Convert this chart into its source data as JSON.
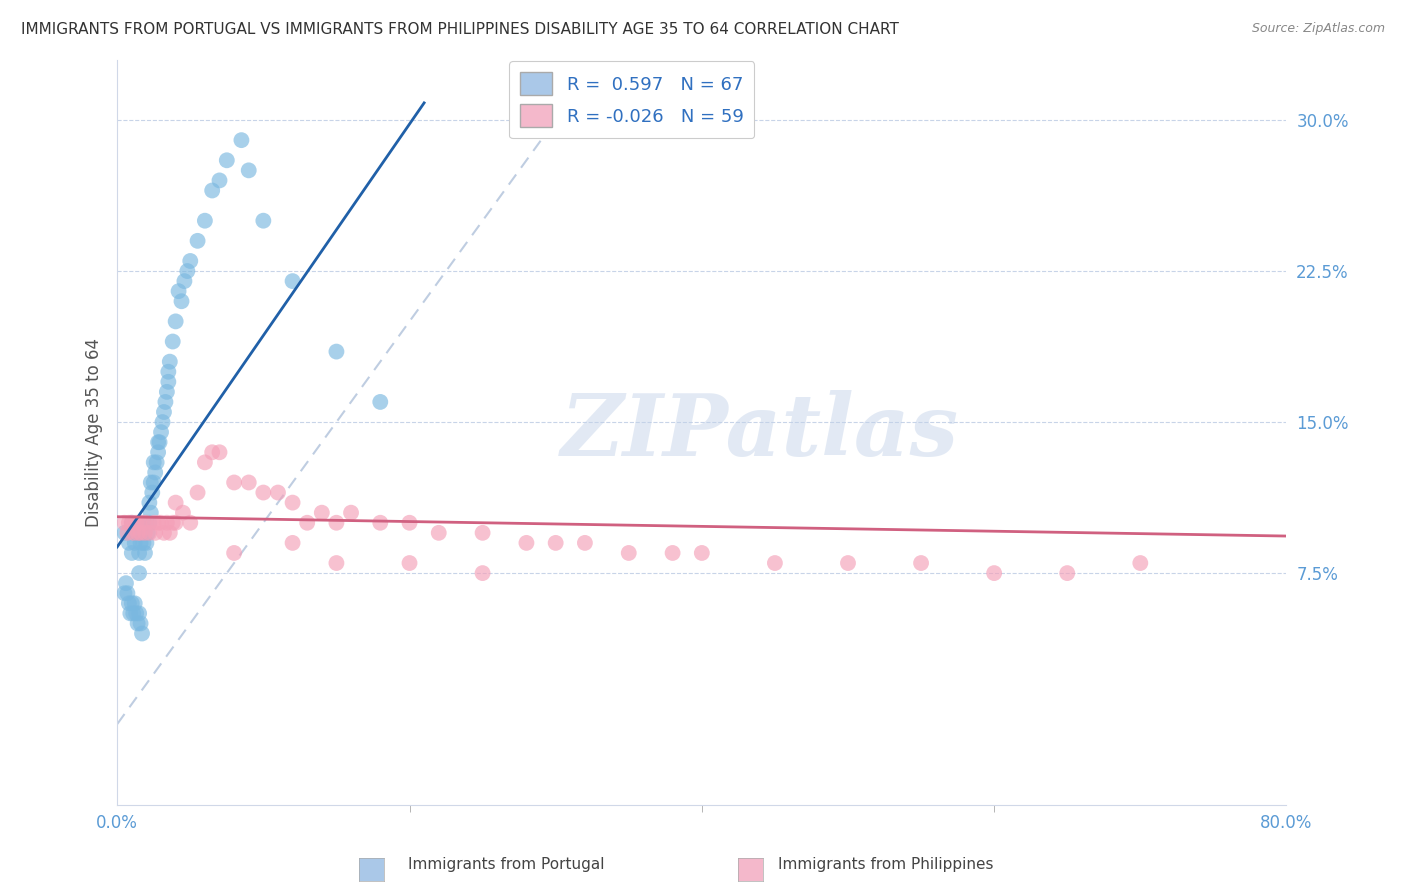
{
  "title": "IMMIGRANTS FROM PORTUGAL VS IMMIGRANTS FROM PHILIPPINES DISABILITY AGE 35 TO 64 CORRELATION CHART",
  "source": "Source: ZipAtlas.com",
  "ylabel": "Disability Age 35 to 64",
  "ytick_vals": [
    0.075,
    0.15,
    0.225,
    0.3
  ],
  "ytick_labels": [
    "7.5%",
    "15.0%",
    "22.5%",
    "30.0%"
  ],
  "xlim": [
    0.0,
    0.8
  ],
  "ylim": [
    -0.04,
    0.33
  ],
  "legend1_label": "R =  0.597   N = 67",
  "legend2_label": "R = -0.026   N = 59",
  "legend1_color": "#aac8e8",
  "legend2_color": "#f4b8cb",
  "series1_color": "#7ab8e0",
  "series2_color": "#f4a0b8",
  "trend1_color": "#2060a8",
  "trend2_color": "#d06080",
  "diagonal_color": "#b8c8de",
  "watermark_text": "ZIPatlas",
  "blue_x": [
    0.005,
    0.008,
    0.01,
    0.01,
    0.012,
    0.013,
    0.015,
    0.015,
    0.016,
    0.017,
    0.018,
    0.018,
    0.019,
    0.02,
    0.02,
    0.021,
    0.022,
    0.022,
    0.023,
    0.023,
    0.024,
    0.025,
    0.025,
    0.026,
    0.027,
    0.028,
    0.028,
    0.029,
    0.03,
    0.031,
    0.032,
    0.033,
    0.034,
    0.035,
    0.035,
    0.036,
    0.038,
    0.04,
    0.042,
    0.044,
    0.046,
    0.048,
    0.05,
    0.055,
    0.06,
    0.065,
    0.07,
    0.075,
    0.085,
    0.09,
    0.1,
    0.12,
    0.15,
    0.18,
    0.005,
    0.006,
    0.007,
    0.008,
    0.009,
    0.01,
    0.011,
    0.012,
    0.013,
    0.014,
    0.015,
    0.016,
    0.017
  ],
  "blue_y": [
    0.095,
    0.09,
    0.085,
    0.1,
    0.09,
    0.095,
    0.085,
    0.075,
    0.09,
    0.095,
    0.09,
    0.1,
    0.085,
    0.09,
    0.1,
    0.095,
    0.1,
    0.11,
    0.105,
    0.12,
    0.115,
    0.12,
    0.13,
    0.125,
    0.13,
    0.135,
    0.14,
    0.14,
    0.145,
    0.15,
    0.155,
    0.16,
    0.165,
    0.17,
    0.175,
    0.18,
    0.19,
    0.2,
    0.215,
    0.21,
    0.22,
    0.225,
    0.23,
    0.24,
    0.25,
    0.265,
    0.27,
    0.28,
    0.29,
    0.275,
    0.25,
    0.22,
    0.185,
    0.16,
    0.065,
    0.07,
    0.065,
    0.06,
    0.055,
    0.06,
    0.055,
    0.06,
    0.055,
    0.05,
    0.055,
    0.05,
    0.045
  ],
  "pink_x": [
    0.005,
    0.007,
    0.008,
    0.01,
    0.011,
    0.013,
    0.014,
    0.015,
    0.016,
    0.018,
    0.019,
    0.02,
    0.022,
    0.025,
    0.026,
    0.028,
    0.03,
    0.032,
    0.034,
    0.036,
    0.038,
    0.04,
    0.04,
    0.045,
    0.05,
    0.055,
    0.06,
    0.065,
    0.07,
    0.08,
    0.09,
    0.1,
    0.11,
    0.12,
    0.13,
    0.14,
    0.15,
    0.16,
    0.18,
    0.2,
    0.22,
    0.25,
    0.28,
    0.3,
    0.32,
    0.35,
    0.38,
    0.4,
    0.45,
    0.5,
    0.55,
    0.6,
    0.65,
    0.7,
    0.08,
    0.12,
    0.15,
    0.2,
    0.25
  ],
  "pink_y": [
    0.1,
    0.095,
    0.1,
    0.1,
    0.095,
    0.1,
    0.095,
    0.1,
    0.095,
    0.1,
    0.095,
    0.1,
    0.095,
    0.1,
    0.095,
    0.1,
    0.1,
    0.095,
    0.1,
    0.095,
    0.1,
    0.11,
    0.1,
    0.105,
    0.1,
    0.115,
    0.13,
    0.135,
    0.135,
    0.12,
    0.12,
    0.115,
    0.115,
    0.11,
    0.1,
    0.105,
    0.1,
    0.105,
    0.1,
    0.1,
    0.095,
    0.095,
    0.09,
    0.09,
    0.09,
    0.085,
    0.085,
    0.085,
    0.08,
    0.08,
    0.08,
    0.075,
    0.075,
    0.08,
    0.085,
    0.09,
    0.08,
    0.08,
    0.075
  ]
}
